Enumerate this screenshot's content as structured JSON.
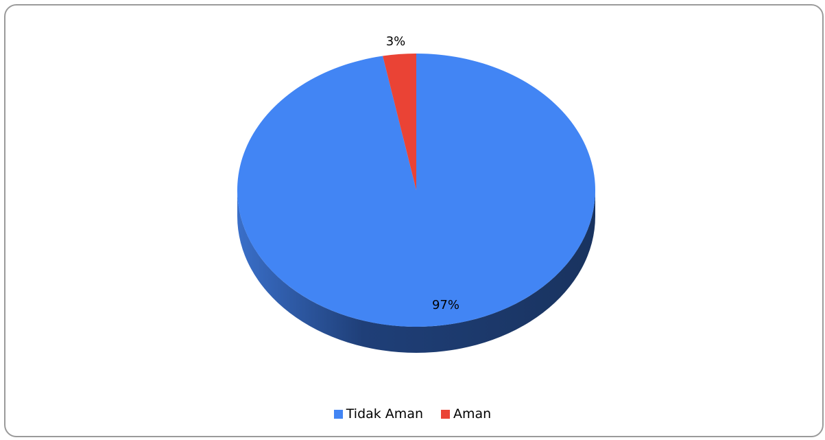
{
  "chart_data": {
    "type": "pie",
    "style": "3d",
    "categories": [
      "Tidak Aman",
      "Aman"
    ],
    "values": [
      97,
      3
    ],
    "data_labels": [
      "97%",
      "3%"
    ],
    "colors": [
      "#4285f4",
      "#ea4335"
    ],
    "side_colors": [
      "#2c5aa8",
      "#9e2a20"
    ],
    "legend_position": "bottom",
    "title": ""
  }
}
